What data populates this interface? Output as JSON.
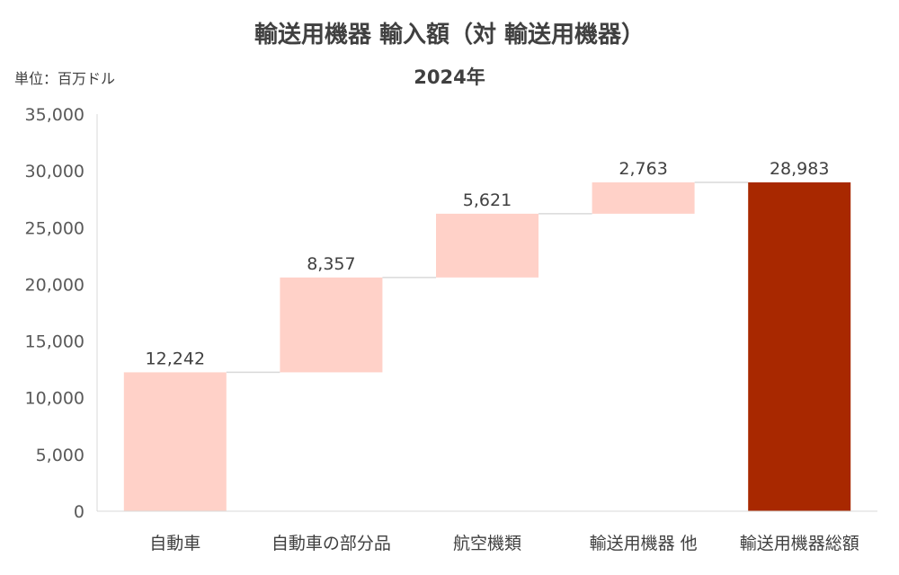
{
  "chart_data": {
    "type": "waterfall",
    "title": "輸送用機器 輸入額（対 輸送用機器）",
    "subtitle": "2024年",
    "unit_label": "単位：百万ドル",
    "categories": [
      "自動車",
      "自動車の部分品",
      "航空機類",
      "輸送用機器 他",
      "輸送用機器総額"
    ],
    "values": [
      12242,
      8357,
      5621,
      2763,
      28983
    ],
    "value_labels": [
      "12,242",
      "8,357",
      "5,621",
      "2,763",
      "28,983"
    ],
    "is_total": [
      false,
      false,
      false,
      false,
      true
    ],
    "ylim": [
      0,
      35000
    ],
    "yticks": [
      0,
      5000,
      10000,
      15000,
      20000,
      25000,
      30000,
      35000
    ],
    "ytick_labels": [
      "0",
      "5,000",
      "10,000",
      "15,000",
      "20,000",
      "25,000",
      "30,000",
      "35,000"
    ],
    "grid": false,
    "legend": "none",
    "colors": {
      "increment": "#FFD1C8",
      "total": "#A82800",
      "connector": "#D9D9D9",
      "axis": "#D9D9D9"
    }
  }
}
